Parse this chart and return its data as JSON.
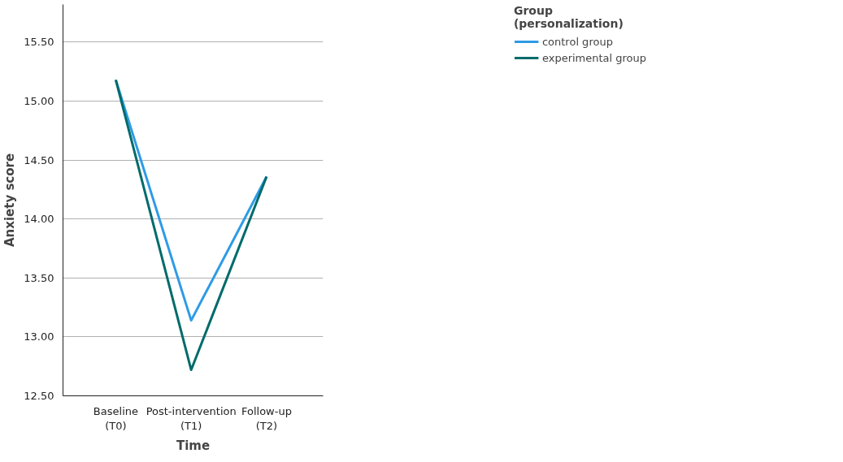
{
  "chart_data": {
    "type": "line",
    "xlabel": "Time",
    "ylabel": "Anxiety score",
    "legend_title": "Group\n(personalization)",
    "categories": [
      "Baseline\n(T0)",
      "Post-intervention\n(T1)",
      "Follow-up\n(T2)"
    ],
    "series": [
      {
        "name": "control group",
        "color": "#2e9be6",
        "values": [
          15.18,
          13.14,
          14.36
        ]
      },
      {
        "name": "experimental group",
        "color": "#006b6b",
        "values": [
          15.18,
          12.72,
          14.36
        ]
      }
    ],
    "ylim": [
      12.5,
      15.82
    ],
    "yticks": [
      {
        "value": 12.5,
        "label": "12.50"
      },
      {
        "value": 13.0,
        "label": "13.00"
      },
      {
        "value": 13.5,
        "label": "13.50"
      },
      {
        "value": 14.0,
        "label": "14.00"
      },
      {
        "value": 14.5,
        "label": "14.50"
      },
      {
        "value": 15.0,
        "label": "15.00"
      },
      {
        "value": 15.5,
        "label": "15.50"
      }
    ],
    "grid": "y",
    "legend": "top right",
    "marker": "none",
    "line_style": "solid"
  }
}
